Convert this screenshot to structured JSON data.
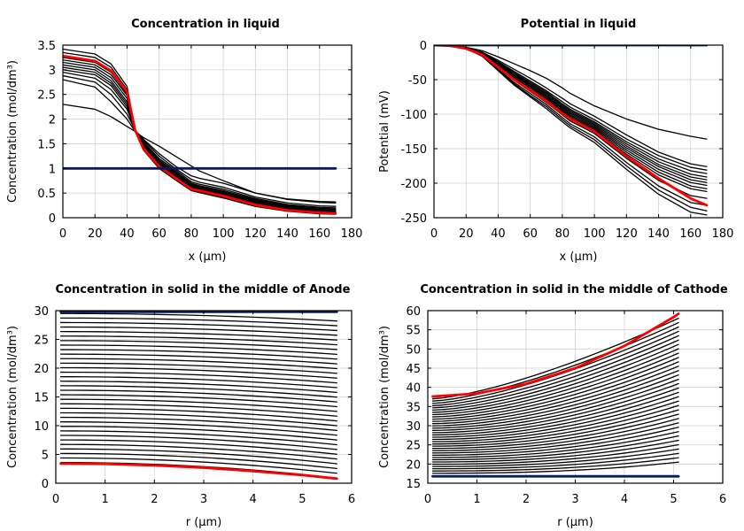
{
  "colors": {
    "ensemble": "#000000",
    "highlight": "#ff0000",
    "initial": "#0a1a5c",
    "grid": "#d3d3d3"
  },
  "chart_data": [
    {
      "type": "line",
      "title": "Concentration in liquid",
      "xlabel": "x (µm)",
      "ylabel": "Concentration (mol/dm³)",
      "xlim": [
        0,
        180
      ],
      "ylim": [
        0,
        3.5
      ],
      "xticks": [
        0,
        20,
        40,
        60,
        80,
        100,
        120,
        140,
        160,
        180
      ],
      "yticks": [
        0,
        0.5,
        1,
        1.5,
        2,
        2.5,
        3,
        3.5
      ],
      "x": [
        0,
        20,
        30,
        40,
        45,
        50,
        60,
        70,
        80,
        85,
        100,
        120,
        140,
        160,
        170
      ],
      "series": [
        {
          "kind": "ensemble",
          "values": [
            2.3,
            2.2,
            2.05,
            1.85,
            1.75,
            1.63,
            1.45,
            1.25,
            1.05,
            0.95,
            0.75,
            0.5,
            0.38,
            0.33,
            0.32
          ]
        },
        {
          "kind": "ensemble",
          "values": [
            2.8,
            2.65,
            2.35,
            2.0,
            1.75,
            1.6,
            1.3,
            1.05,
            0.85,
            0.8,
            0.7,
            0.5,
            0.37,
            0.31,
            0.3
          ]
        },
        {
          "kind": "ensemble",
          "values": [
            2.88,
            2.75,
            2.5,
            2.1,
            1.78,
            1.58,
            1.25,
            1.0,
            0.78,
            0.72,
            0.62,
            0.42,
            0.3,
            0.24,
            0.23
          ]
        },
        {
          "kind": "ensemble",
          "values": [
            2.95,
            2.83,
            2.6,
            2.2,
            1.78,
            1.55,
            1.2,
            0.97,
            0.73,
            0.68,
            0.58,
            0.39,
            0.27,
            0.21,
            0.2
          ]
        },
        {
          "kind": "ensemble",
          "values": [
            3.0,
            2.9,
            2.68,
            2.25,
            1.78,
            1.52,
            1.17,
            0.94,
            0.7,
            0.65,
            0.55,
            0.37,
            0.25,
            0.19,
            0.18
          ]
        },
        {
          "kind": "ensemble",
          "values": [
            3.05,
            2.95,
            2.73,
            2.3,
            1.78,
            1.5,
            1.15,
            0.92,
            0.68,
            0.63,
            0.53,
            0.35,
            0.23,
            0.17,
            0.16
          ]
        },
        {
          "kind": "ensemble",
          "values": [
            3.1,
            3.0,
            2.78,
            2.35,
            1.78,
            1.48,
            1.12,
            0.9,
            0.66,
            0.61,
            0.51,
            0.33,
            0.22,
            0.16,
            0.15
          ]
        },
        {
          "kind": "ensemble",
          "values": [
            3.15,
            3.05,
            2.84,
            2.42,
            1.78,
            1.46,
            1.1,
            0.87,
            0.64,
            0.59,
            0.49,
            0.31,
            0.2,
            0.14,
            0.13
          ]
        },
        {
          "kind": "ensemble",
          "values": [
            3.2,
            3.1,
            2.9,
            2.48,
            1.78,
            1.44,
            1.08,
            0.85,
            0.62,
            0.57,
            0.47,
            0.29,
            0.18,
            0.13,
            0.12
          ]
        },
        {
          "kind": "ensemble",
          "values": [
            3.25,
            3.15,
            2.95,
            2.52,
            1.78,
            1.42,
            1.06,
            0.83,
            0.6,
            0.56,
            0.45,
            0.28,
            0.17,
            0.12,
            0.11
          ]
        },
        {
          "kind": "ensemble",
          "values": [
            3.35,
            3.25,
            3.05,
            2.6,
            1.78,
            1.4,
            1.02,
            0.79,
            0.57,
            0.53,
            0.42,
            0.25,
            0.15,
            0.1,
            0.09
          ]
        },
        {
          "kind": "ensemble",
          "values": [
            3.42,
            3.32,
            3.12,
            2.66,
            1.78,
            1.38,
            1.0,
            0.77,
            0.55,
            0.51,
            0.4,
            0.23,
            0.13,
            0.08,
            0.07
          ]
        },
        {
          "kind": "highlight",
          "values": [
            3.28,
            3.18,
            2.98,
            2.56,
            1.78,
            1.41,
            1.04,
            0.81,
            0.58,
            0.55,
            0.44,
            0.26,
            0.15,
            0.1,
            0.09
          ]
        },
        {
          "kind": "initial",
          "values": [
            1,
            1,
            1,
            1,
            1,
            1,
            1,
            1,
            1,
            1,
            1,
            1,
            1,
            1,
            1
          ]
        }
      ]
    },
    {
      "type": "line",
      "title": "Potential in liquid",
      "xlabel": "x (µm)",
      "ylabel": "Potential (mV)",
      "xlim": [
        0,
        180
      ],
      "ylim": [
        -250,
        0
      ],
      "xticks": [
        0,
        20,
        40,
        60,
        80,
        100,
        120,
        140,
        160,
        180
      ],
      "yticks": [
        0,
        -50,
        -100,
        -150,
        -200,
        -250
      ],
      "x": [
        0,
        10,
        20,
        30,
        40,
        50,
        60,
        70,
        80,
        85,
        100,
        120,
        140,
        160,
        170
      ],
      "series": [
        {
          "kind": "ensemble",
          "values": [
            0,
            -1,
            -3,
            -8,
            -17,
            -27,
            -37,
            -48,
            -62,
            -70,
            -88,
            -107,
            -122,
            -132,
            -136
          ]
        },
        {
          "kind": "ensemble",
          "values": [
            0,
            -1,
            -4,
            -10,
            -22,
            -35,
            -48,
            -62,
            -77,
            -85,
            -103,
            -130,
            -155,
            -172,
            -176
          ]
        },
        {
          "kind": "ensemble",
          "values": [
            0,
            -1,
            -4,
            -11,
            -24,
            -38,
            -52,
            -66,
            -82,
            -90,
            -108,
            -136,
            -160,
            -177,
            -181
          ]
        },
        {
          "kind": "ensemble",
          "values": [
            0,
            -1,
            -4,
            -11,
            -25,
            -40,
            -54,
            -68,
            -85,
            -93,
            -111,
            -140,
            -165,
            -182,
            -186
          ]
        },
        {
          "kind": "ensemble",
          "values": [
            0,
            -1,
            -4,
            -12,
            -26,
            -41,
            -56,
            -70,
            -87,
            -95,
            -113,
            -143,
            -169,
            -187,
            -191
          ]
        },
        {
          "kind": "ensemble",
          "values": [
            0,
            -1,
            -4,
            -12,
            -27,
            -43,
            -57,
            -72,
            -89,
            -97,
            -115,
            -146,
            -173,
            -191,
            -195
          ]
        },
        {
          "kind": "ensemble",
          "values": [
            0,
            -1,
            -4,
            -12,
            -28,
            -44,
            -59,
            -74,
            -91,
            -99,
            -117,
            -149,
            -176,
            -195,
            -199
          ]
        },
        {
          "kind": "ensemble",
          "values": [
            0,
            -1,
            -4,
            -13,
            -29,
            -45,
            -60,
            -75,
            -93,
            -101,
            -119,
            -152,
            -180,
            -199,
            -203
          ]
        },
        {
          "kind": "ensemble",
          "values": [
            0,
            -1,
            -4,
            -13,
            -30,
            -47,
            -62,
            -77,
            -95,
            -103,
            -121,
            -155,
            -184,
            -204,
            -208
          ]
        },
        {
          "kind": "ensemble",
          "values": [
            0,
            -1,
            -5,
            -14,
            -31,
            -48,
            -64,
            -79,
            -97,
            -105,
            -123,
            -158,
            -188,
            -208,
            -212
          ]
        },
        {
          "kind": "ensemble",
          "values": [
            0,
            -1,
            -5,
            -14,
            -33,
            -51,
            -67,
            -83,
            -101,
            -110,
            -128,
            -164,
            -196,
            -218,
            -222
          ]
        },
        {
          "kind": "ensemble",
          "values": [
            0,
            -1,
            -5,
            -15,
            -35,
            -54,
            -70,
            -86,
            -105,
            -114,
            -133,
            -170,
            -204,
            -228,
            -232
          ]
        },
        {
          "kind": "ensemble",
          "values": [
            0,
            -1,
            -5,
            -15,
            -36,
            -56,
            -73,
            -89,
            -108,
            -117,
            -137,
            -175,
            -210,
            -235,
            -240
          ]
        },
        {
          "kind": "ensemble",
          "values": [
            0,
            -1,
            -5,
            -16,
            -37,
            -58,
            -75,
            -92,
            -111,
            -120,
            -141,
            -180,
            -216,
            -242,
            -246
          ]
        },
        {
          "kind": "highlight",
          "values": [
            0,
            -1,
            -5,
            -14,
            -32,
            -50,
            -65,
            -81,
            -99,
            -107,
            -125,
            -161,
            -193,
            -222,
            -232
          ]
        },
        {
          "kind": "initial",
          "values": [
            0,
            0,
            0,
            0,
            0,
            0,
            0,
            0,
            0,
            0,
            0,
            0,
            0,
            0,
            0
          ]
        }
      ]
    },
    {
      "type": "line",
      "title": "Concentration in solid in the middle of Anode",
      "xlabel": "r (µm)",
      "ylabel": "Concentration (mol/dm³)",
      "xlim": [
        0,
        6
      ],
      "ylim": [
        0,
        30
      ],
      "xticks": [
        0,
        1,
        2,
        3,
        4,
        5,
        6
      ],
      "yticks": [
        0,
        5,
        10,
        15,
        20,
        25,
        30
      ],
      "rmax": 5.7,
      "family": {
        "kind": "ensemble",
        "count": 34,
        "start_at_r0": [
          3.6,
          29.5
        ],
        "drop_at_rmax": [
          2.7,
          1.3
        ]
      },
      "series": [
        {
          "kind": "highlight",
          "r": [
            0.1,
            1,
            2,
            3,
            4,
            5,
            5.7
          ],
          "values": [
            3.4,
            3.35,
            3.1,
            2.7,
            2.1,
            1.4,
            0.8
          ]
        },
        {
          "kind": "initial",
          "r": [
            0.1,
            5.7
          ],
          "values": [
            29.8,
            29.8
          ]
        }
      ]
    },
    {
      "type": "line",
      "title": "Concentration in solid in the middle of Cathode",
      "xlabel": "r (µm)",
      "ylabel": "Concentration (mol/dm³)",
      "xlim": [
        0,
        6
      ],
      "ylim": [
        15,
        60
      ],
      "xticks": [
        0,
        1,
        2,
        3,
        4,
        5,
        6
      ],
      "yticks": [
        15,
        20,
        25,
        30,
        35,
        40,
        45,
        50,
        55,
        60
      ],
      "rmax": 5.1,
      "family": {
        "kind": "ensemble",
        "count": 34,
        "start_at_r0": [
          17.6,
          37.0
        ],
        "end_at_rmax": [
          20.5,
          58.0
        ]
      },
      "series": [
        {
          "kind": "highlight",
          "r": [
            0.1,
            1,
            2,
            3,
            4,
            5,
            5.1
          ],
          "values": [
            37.6,
            38.4,
            40.9,
            45.0,
            50.8,
            58.3,
            59.2
          ]
        },
        {
          "kind": "initial",
          "r": [
            0.1,
            5.1
          ],
          "values": [
            16.8,
            16.8
          ]
        }
      ]
    }
  ]
}
